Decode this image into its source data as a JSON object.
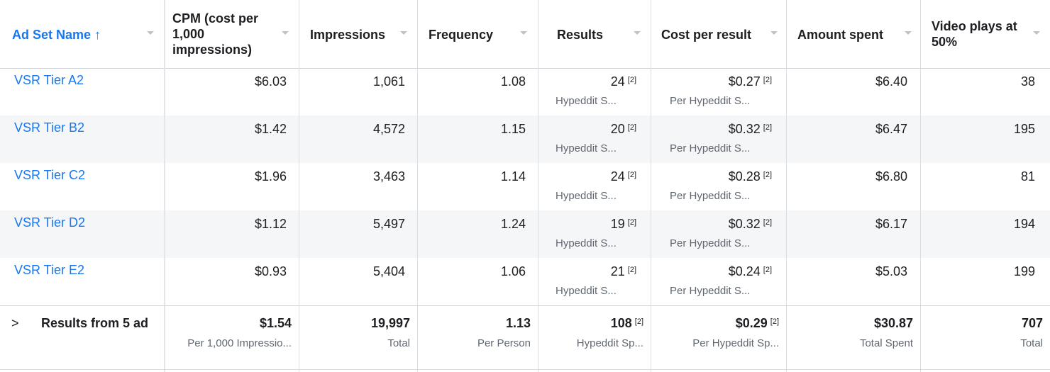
{
  "colors": {
    "link": "#1877f2",
    "text": "#1c1e21",
    "muted": "#606770",
    "alt_row": "#f5f6f7"
  },
  "icons": {
    "sort": "arrow-up-icon",
    "menu": "caret-down-icon",
    "expand": "chevron-right-icon"
  },
  "headers": [
    {
      "label": "Ad Set Name",
      "sort_glyph": "↑"
    },
    {
      "line1": "CPM (cost per",
      "line2": "1,000",
      "line3": "impressions)"
    },
    {
      "label": "Impressions"
    },
    {
      "label": "Frequency"
    },
    {
      "label": "Results"
    },
    {
      "label": "Cost per result"
    },
    {
      "label": "Amount spent"
    },
    {
      "line1": "Video plays at",
      "line2": "50%"
    }
  ],
  "rows": [
    {
      "name": "VSR Tier A2",
      "cpm": "$6.03",
      "impressions": "1,061",
      "frequency": "1.08",
      "results": "24",
      "results_note": "[2]",
      "results_sub": "Hypeddit S...",
      "cost": "$0.27",
      "cost_note": "[2]",
      "cost_sub": "Per Hypeddit S...",
      "spent": "$6.40",
      "video": "38"
    },
    {
      "name": "VSR Tier B2",
      "cpm": "$1.42",
      "impressions": "4,572",
      "frequency": "1.15",
      "results": "20",
      "results_note": "[2]",
      "results_sub": "Hypeddit S...",
      "cost": "$0.32",
      "cost_note": "[2]",
      "cost_sub": "Per Hypeddit S...",
      "spent": "$6.47",
      "video": "195"
    },
    {
      "name": "VSR Tier C2",
      "cpm": "$1.96",
      "impressions": "3,463",
      "frequency": "1.14",
      "results": "24",
      "results_note": "[2]",
      "results_sub": "Hypeddit S...",
      "cost": "$0.28",
      "cost_note": "[2]",
      "cost_sub": "Per Hypeddit S...",
      "spent": "$6.80",
      "video": "81"
    },
    {
      "name": "VSR Tier D2",
      "cpm": "$1.12",
      "impressions": "5,497",
      "frequency": "1.24",
      "results": "19",
      "results_note": "[2]",
      "results_sub": "Hypeddit S...",
      "cost": "$0.32",
      "cost_note": "[2]",
      "cost_sub": "Per Hypeddit S...",
      "spent": "$6.17",
      "video": "194"
    },
    {
      "name": "VSR Tier E2",
      "cpm": "$0.93",
      "impressions": "5,404",
      "frequency": "1.06",
      "results": "21",
      "results_note": "[2]",
      "results_sub": "Hypeddit S...",
      "cost": "$0.24",
      "cost_note": "[2]",
      "cost_sub": "Per Hypeddit S...",
      "spent": "$5.03",
      "video": "199"
    }
  ],
  "footer": {
    "expand_glyph": ">",
    "label": "Results from 5 ad",
    "cpm": "$1.54",
    "cpm_sub": "Per 1,000 Impressio...",
    "impressions": "19,997",
    "impressions_sub": "Total",
    "frequency": "1.13",
    "frequency_sub": "Per Person",
    "results": "108",
    "results_note": "[2]",
    "results_sub": "Hypeddit Sp...",
    "cost": "$0.29",
    "cost_note": "[2]",
    "cost_sub": "Per Hypeddit Sp...",
    "spent": "$30.87",
    "spent_sub": "Total Spent",
    "video": "707",
    "video_sub": "Total"
  }
}
